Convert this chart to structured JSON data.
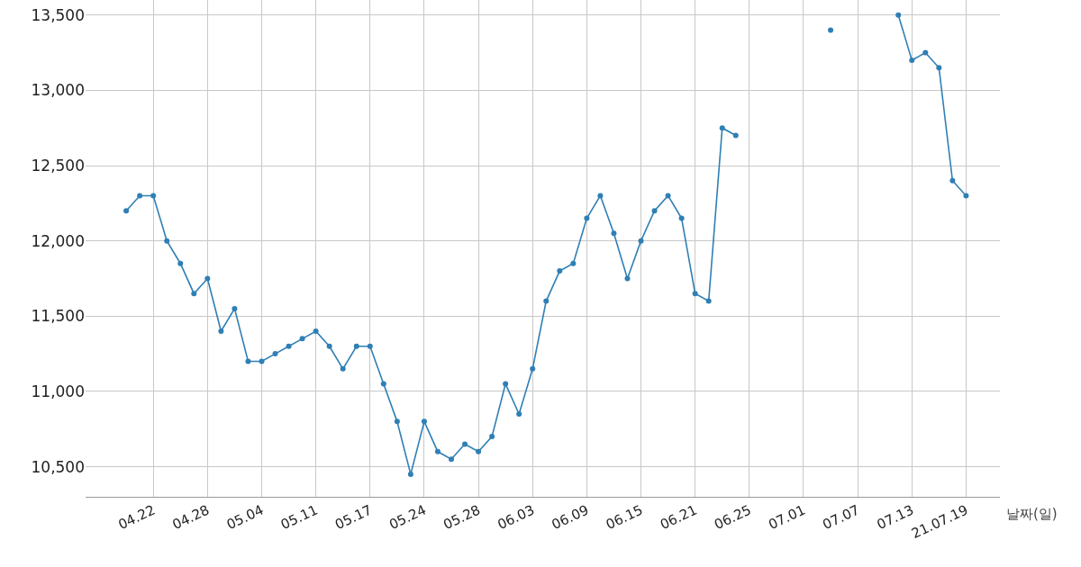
{
  "chart_data": {
    "type": "line",
    "xlabel": "날짜(일)",
    "categories": [
      null,
      null,
      "04.22",
      null,
      null,
      null,
      "04.28",
      null,
      null,
      null,
      "05.04",
      null,
      null,
      null,
      "05.11",
      null,
      null,
      null,
      "05.17",
      null,
      null,
      null,
      "05.24",
      null,
      null,
      null,
      "05.28",
      null,
      null,
      null,
      "06.03",
      null,
      null,
      null,
      "06.09",
      null,
      null,
      null,
      "06.15",
      null,
      null,
      null,
      "06.21",
      null,
      null,
      null,
      "06.25",
      null,
      null,
      null,
      "07.01",
      null,
      null,
      null,
      "07.07",
      null,
      null,
      null,
      "07.13",
      null,
      null,
      null,
      "21.07.19"
    ],
    "series": [
      {
        "color": "#2f7fb5",
        "values": [
          12200,
          12300,
          12300,
          12000,
          11850,
          11650,
          11750,
          11400,
          11550,
          11200,
          11200,
          11250,
          11300,
          11350,
          11400,
          11300,
          11150,
          11300,
          11300,
          11050,
          10800,
          10450,
          10800,
          10600,
          10550,
          10650,
          10600,
          10700,
          11050,
          10850,
          11150,
          11600,
          11800,
          11850,
          12150,
          12300,
          12050,
          11750,
          12000,
          12200,
          12300,
          12150,
          11650,
          11600,
          12750,
          12700,
          null,
          null,
          null,
          null,
          null,
          null,
          13400,
          null,
          null,
          null,
          null,
          13500,
          13200,
          13250,
          13150,
          12400,
          12300
        ]
      }
    ],
    "ylim": [
      10300,
      13600
    ],
    "yticks": [
      {
        "value": 10500,
        "label": "10,500"
      },
      {
        "value": 11000,
        "label": "11,000"
      },
      {
        "value": 11500,
        "label": "11,500"
      },
      {
        "value": 12000,
        "label": "12,000"
      },
      {
        "value": 12500,
        "label": "12,500"
      },
      {
        "value": 13000,
        "label": "13,000"
      },
      {
        "value": 13500,
        "label": "13,500"
      }
    ],
    "grid": true,
    "marker": "circle",
    "line_style": "solid"
  }
}
